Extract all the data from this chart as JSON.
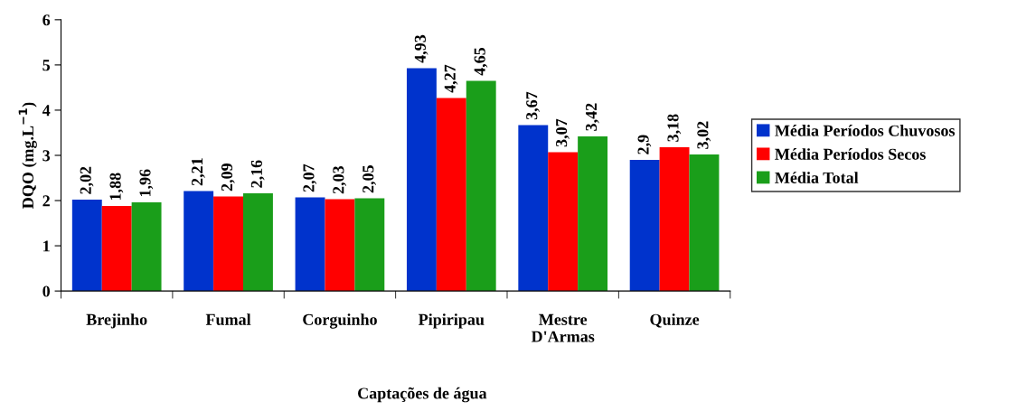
{
  "chart_data": {
    "type": "bar",
    "xlabel": "Captações de água",
    "ylabel": "DQO (mg.L$^{−1}$)",
    "categories": [
      "Brejinho",
      "Fumal",
      "Corguinho",
      "Pipiripau",
      "Mestre\nD'Armas",
      "Quinze"
    ],
    "series": [
      {
        "name": "Média Períodos Chuvosos",
        "color": "#0033cc",
        "values": [
          2.02,
          2.21,
          2.07,
          4.93,
          3.67,
          2.9
        ],
        "value_labels": [
          "2,02",
          "2,21",
          "2,07",
          "4,93",
          "3,67",
          "2,9"
        ]
      },
      {
        "name": "Média Períodos Secos",
        "color": "#ff0000",
        "values": [
          1.88,
          2.09,
          2.03,
          4.27,
          3.07,
          3.18
        ],
        "value_labels": [
          "1,88",
          "2,09",
          "2,03",
          "4,27",
          "3,07",
          "3,18"
        ]
      },
      {
        "name": "Média Total",
        "color": "#1a9e1a",
        "values": [
          1.96,
          2.16,
          2.05,
          4.65,
          3.42,
          3.02
        ],
        "value_labels": [
          "1,96",
          "2,16",
          "2,05",
          "4,65",
          "3,42",
          "3,02"
        ]
      }
    ],
    "ylim": [
      0,
      6
    ],
    "yticks": [
      0,
      1,
      2,
      3,
      4,
      5,
      6
    ],
    "grid": false,
    "legend": "right"
  }
}
